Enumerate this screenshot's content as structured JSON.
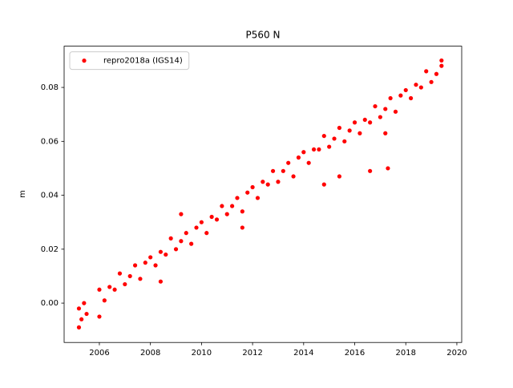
{
  "chart_data": {
    "type": "scatter",
    "title": "P560 N",
    "ylabel": "m",
    "x": [
      2005.2,
      2005.3,
      2005.4,
      2005.5,
      2006.0,
      2006.2,
      2006.4,
      2006.6,
      2006.8,
      2007.0,
      2007.2,
      2007.4,
      2007.6,
      2007.8,
      2008.0,
      2008.2,
      2008.4,
      2008.6,
      2008.8,
      2009.0,
      2009.2,
      2009.4,
      2009.6,
      2009.8,
      2010.0,
      2010.2,
      2010.4,
      2010.6,
      2010.8,
      2011.0,
      2011.2,
      2011.4,
      2011.6,
      2011.8,
      2012.0,
      2012.2,
      2012.4,
      2012.6,
      2012.8,
      2013.0,
      2013.2,
      2013.4,
      2013.6,
      2013.8,
      2014.0,
      2014.2,
      2014.4,
      2014.6,
      2014.8,
      2015.0,
      2015.2,
      2015.4,
      2015.6,
      2015.8,
      2016.0,
      2016.2,
      2016.4,
      2016.6,
      2016.8,
      2017.0,
      2017.2,
      2017.4,
      2017.6,
      2017.8,
      2018.0,
      2018.2,
      2018.4,
      2018.6,
      2018.8,
      2019.0,
      2019.2,
      2019.4,
      2005.2,
      2006.0,
      2008.4,
      2009.2,
      2011.6,
      2014.8,
      2015.4,
      2016.6,
      2017.3,
      2017.2,
      2019.4
    ],
    "series": [
      {
        "name": "repro2018a (IGS14)",
        "color": "#ff0000",
        "values": [
          -0.002,
          -0.006,
          0.0,
          -0.004,
          0.005,
          0.001,
          0.006,
          0.005,
          0.011,
          0.007,
          0.01,
          0.014,
          0.009,
          0.015,
          0.017,
          0.014,
          0.019,
          0.018,
          0.024,
          0.02,
          0.023,
          0.026,
          0.022,
          0.028,
          0.03,
          0.026,
          0.032,
          0.031,
          0.036,
          0.033,
          0.036,
          0.039,
          0.034,
          0.041,
          0.043,
          0.039,
          0.045,
          0.044,
          0.049,
          0.045,
          0.049,
          0.052,
          0.047,
          0.054,
          0.056,
          0.052,
          0.057,
          0.057,
          0.062,
          0.058,
          0.061,
          0.065,
          0.06,
          0.064,
          0.067,
          0.063,
          0.068,
          0.067,
          0.073,
          0.069,
          0.072,
          0.076,
          0.071,
          0.077,
          0.079,
          0.076,
          0.081,
          0.08,
          0.086,
          0.082,
          0.085,
          0.088,
          -0.009,
          -0.005,
          0.008,
          0.033,
          0.028,
          0.044,
          0.047,
          0.049,
          0.05,
          0.063,
          0.09
        ]
      }
    ],
    "xlim": [
      2004.62,
      2020.19
    ],
    "ylim": [
      -0.0146,
      0.0953
    ],
    "xticks": [
      2006,
      2008,
      2010,
      2012,
      2014,
      2016,
      2018,
      2020
    ],
    "yticks": [
      {
        "value": 0,
        "label": "0.00"
      },
      0.02,
      0.04,
      0.06,
      0.08
    ],
    "legend": "upper left",
    "grid": false
  }
}
